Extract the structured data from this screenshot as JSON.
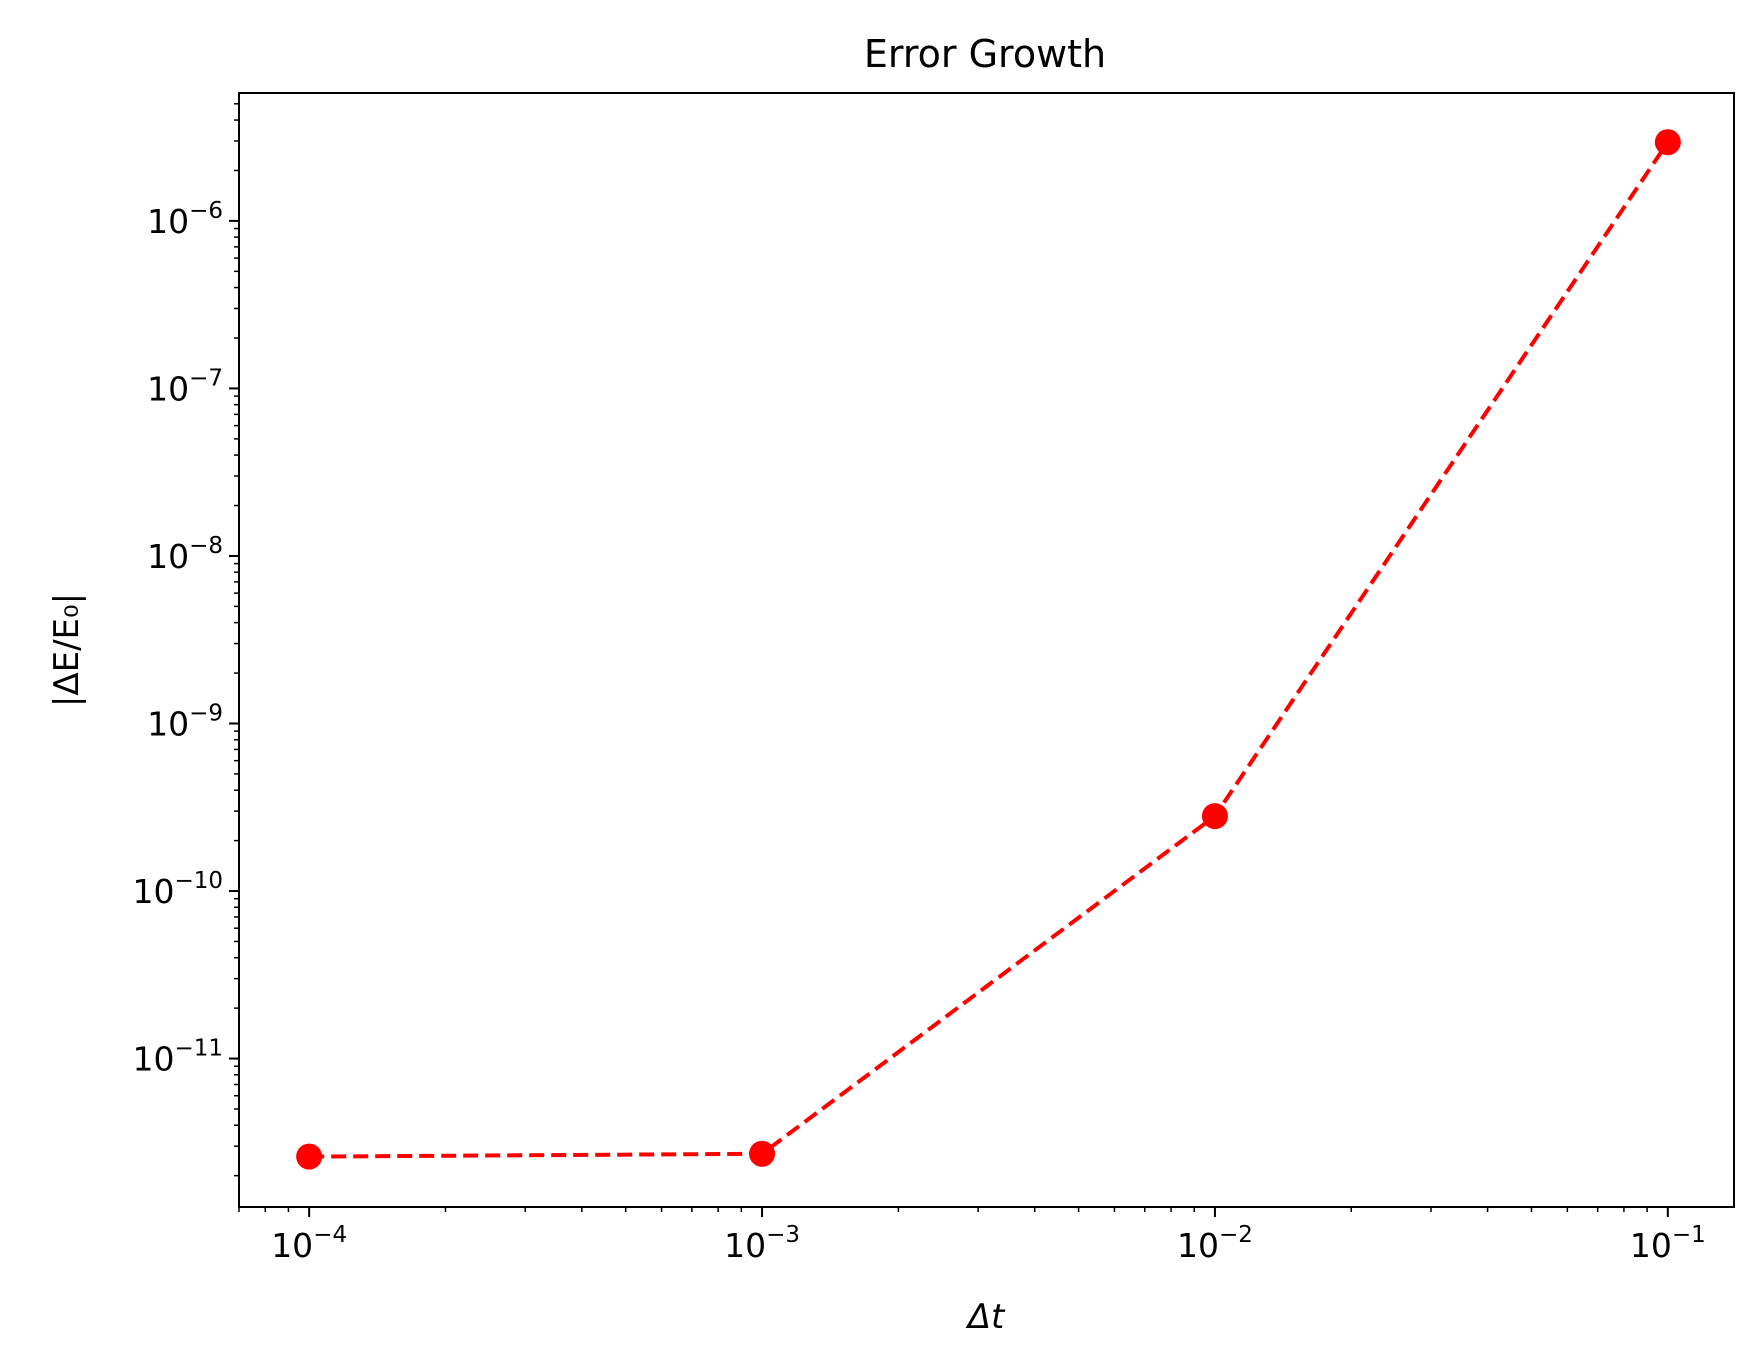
{
  "chart_data": {
    "type": "line",
    "title": "Error Growth",
    "xlabel": "Δt",
    "ylabel": "|ΔE/E₀|",
    "xscale": "log",
    "yscale": "log",
    "xlim": [
      7e-05,
      0.14
    ],
    "ylim": [
      1.3e-12,
      5.8e-06
    ],
    "grid": false,
    "legend": "none",
    "x_ticks": [
      {
        "value": 0.0001,
        "base": "10",
        "exp": "−4"
      },
      {
        "value": 0.001,
        "base": "10",
        "exp": "−3"
      },
      {
        "value": 0.01,
        "base": "10",
        "exp": "−2"
      },
      {
        "value": 0.1,
        "base": "10",
        "exp": "−1"
      }
    ],
    "y_ticks": [
      {
        "value": 1e-11,
        "base": "10",
        "exp": "−11"
      },
      {
        "value": 1e-10,
        "base": "10",
        "exp": "−10"
      },
      {
        "value": 1e-09,
        "base": "10",
        "exp": "−9"
      },
      {
        "value": 1e-08,
        "base": "10",
        "exp": "−8"
      },
      {
        "value": 1e-07,
        "base": "10",
        "exp": "−7"
      },
      {
        "value": 1e-06,
        "base": "10",
        "exp": "−6"
      }
    ],
    "series": [
      {
        "x": [
          0.0001,
          0.001,
          0.01,
          0.1
        ],
        "y": [
          2.6e-12,
          2.7e-12,
          2.8e-10,
          2.95e-06
        ],
        "color": "#ff0000",
        "linestyle": "dashed",
        "marker": "circle"
      }
    ]
  }
}
